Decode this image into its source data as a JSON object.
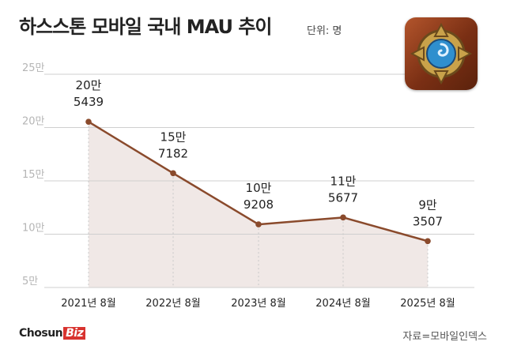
{
  "header": {
    "title": "하스스톤 모바일 국내 MAU 추이",
    "unit": "단위: 명"
  },
  "logo_icon": "hearthstone-logo-icon",
  "footer": {
    "brand_main": "Chosun",
    "brand_accent": "Biz",
    "source": "자료=모바일인덱스"
  },
  "colors": {
    "line": "#8a4a2c",
    "area": "#f0e8e6",
    "grid": "#cfcfcf",
    "axis_text": "#b5b5b5",
    "brand_red": "#d8332f"
  },
  "chart_data": {
    "type": "line",
    "categories": [
      "2021년 8월",
      "2022년 8월",
      "2023년 8월",
      "2024년 8월",
      "2025년 8월"
    ],
    "values": [
      205439,
      157182,
      109208,
      115677,
      93507
    ],
    "data_labels": [
      [
        "20만",
        "5439"
      ],
      [
        "15만",
        "7182"
      ],
      [
        "10만",
        "9208"
      ],
      [
        "11만",
        "5677"
      ],
      [
        "9만",
        "3507"
      ]
    ],
    "y_ticks": [
      50000,
      100000,
      150000,
      200000,
      250000
    ],
    "y_tick_labels": [
      "5만",
      "10만",
      "15만",
      "20만",
      "25만"
    ],
    "ylim": [
      50000,
      250000
    ],
    "grid": true
  }
}
